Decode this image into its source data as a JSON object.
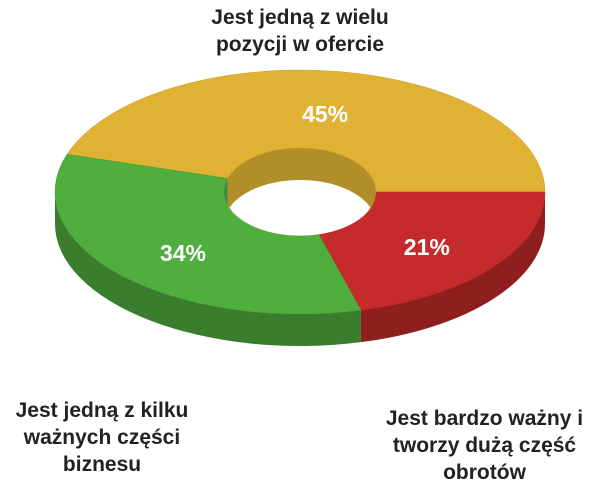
{
  "chart_data": {
    "type": "pie",
    "categories": [
      "Jest jedną z wielu pozycji w ofercie",
      "Jest bardzo ważny i tworzy dużą część obrotów",
      "Jest jedną z kilku ważnych części biznesu"
    ],
    "values": [
      45,
      21,
      34
    ],
    "value_labels": [
      "45%",
      "21%",
      "34%"
    ],
    "colors": [
      "#dfb233",
      "#c62b2b",
      "#4fae3e"
    ]
  }
}
